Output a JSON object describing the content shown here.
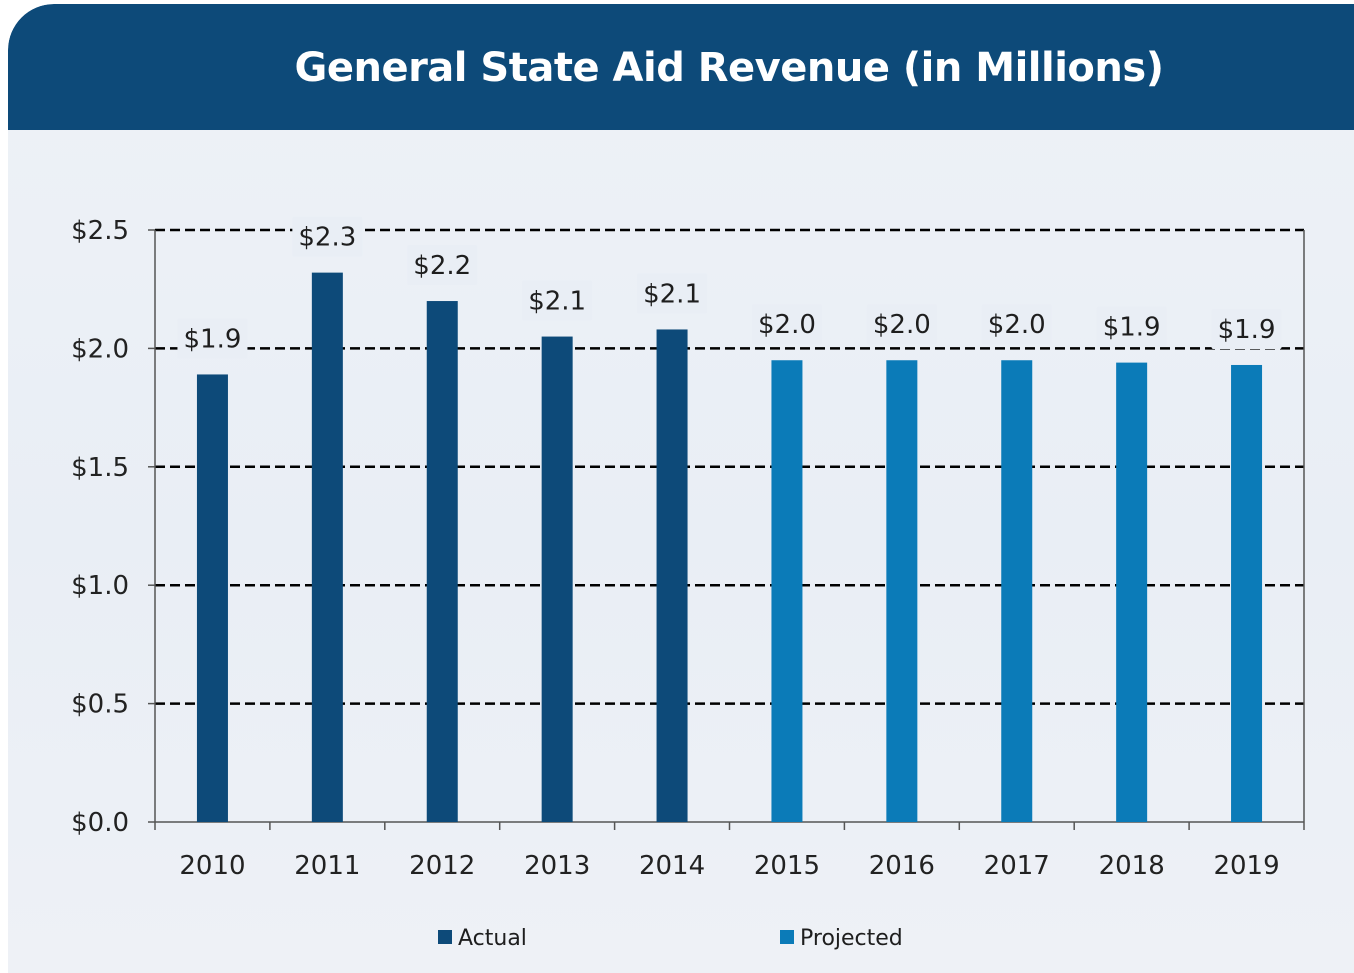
{
  "colors": {
    "header": "#0d4a79",
    "actual": "#0d4a79",
    "projected": "#0b7bb8"
  },
  "chart_data": {
    "type": "bar",
    "title": "General State Aid Revenue (in Millions)",
    "xlabel": "",
    "ylabel": "",
    "ylim": [
      0,
      2.5
    ],
    "yticks": [
      "$0.0",
      "$0.5",
      "$1.0",
      "$1.5",
      "$2.0",
      "$2.5"
    ],
    "ytick_values": [
      0,
      0.5,
      1.0,
      1.5,
      2.0,
      2.5
    ],
    "grid": "dashed horizontal",
    "legend_position": "bottom",
    "categories": [
      "2010",
      "2011",
      "2012",
      "2013",
      "2014",
      "2015",
      "2016",
      "2017",
      "2018",
      "2019"
    ],
    "values": [
      1.89,
      2.32,
      2.2,
      2.05,
      2.08,
      1.95,
      1.95,
      1.95,
      1.94,
      1.93
    ],
    "data_labels": [
      "$1.9",
      "$2.3",
      "$2.2",
      "$2.1",
      "$2.1",
      "$2.0",
      "$2.0",
      "$2.0",
      "$1.9",
      "$1.9"
    ],
    "series_by_category": [
      "Actual",
      "Actual",
      "Actual",
      "Actual",
      "Actual",
      "Projected",
      "Projected",
      "Projected",
      "Projected",
      "Projected"
    ],
    "legend": [
      "Actual",
      "Projected"
    ]
  }
}
